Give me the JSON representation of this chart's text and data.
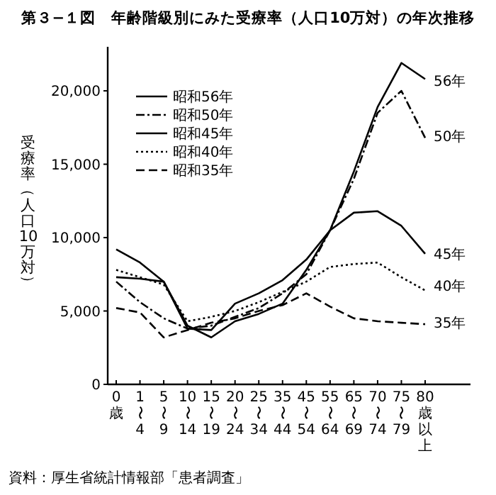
{
  "chart_data": {
    "type": "line",
    "title": "第３−１図　年齢階級別にみた受療率（人口10万対）の年次推移",
    "ylabel": "受療率（人口10万対）",
    "categories": [
      "0歳",
      "1〜4",
      "5〜9",
      "10〜14",
      "15〜19",
      "20〜24",
      "25〜34",
      "35〜44",
      "45〜54",
      "55〜64",
      "65〜69",
      "70〜74",
      "75〜79",
      "80歳以上"
    ],
    "ylim": [
      0,
      23000
    ],
    "yticks": [
      0,
      {
        "value": 5000,
        "label": "5,000"
      },
      {
        "value": 10000,
        "label": "10,000"
      },
      {
        "value": 15000,
        "label": "15,000"
      },
      {
        "value": 20000,
        "label": "20,000"
      }
    ],
    "legend": "top left",
    "grid": false,
    "marker": "none",
    "series": [
      {
        "name": "昭和56年",
        "color": "#000000",
        "line_style": "solid",
        "values": [
          7300,
          7200,
          7000,
          4000,
          3200,
          4300,
          4800,
          5500,
          7800,
          10500,
          14500,
          18900,
          21900,
          20800
        ]
      },
      {
        "name": "昭和50年",
        "color": "#000000",
        "line_style": "dashdot",
        "values": [
          7000,
          5600,
          4500,
          3800,
          4000,
          4600,
          5200,
          6200,
          7500,
          10500,
          14000,
          18500,
          20000,
          16800
        ]
      },
      {
        "name": "昭和45年",
        "color": "#000000",
        "line_style": "solid",
        "values": [
          9200,
          8300,
          7000,
          3800,
          3700,
          5500,
          6200,
          7100,
          8500,
          10500,
          11700,
          11800,
          10800,
          8900
        ]
      },
      {
        "name": "昭和40年",
        "color": "#000000",
        "line_style": "dotted",
        "values": [
          7800,
          7300,
          6800,
          4300,
          4600,
          5000,
          5600,
          6300,
          7000,
          8000,
          8200,
          8300,
          7300,
          6400
        ]
      },
      {
        "name": "昭和35年",
        "color": "#000000",
        "line_style": "dashed",
        "values": [
          5200,
          4900,
          3200,
          3700,
          4200,
          4500,
          5000,
          5400,
          6200,
          5300,
          4500,
          4300,
          4200,
          4100
        ]
      }
    ],
    "annotations": [
      {
        "text": "56年",
        "x": "80歳以上",
        "y": 20700
      },
      {
        "text": "50年",
        "x": "80歳以上",
        "y": 16900
      },
      {
        "text": "45年",
        "x": "80歳以上",
        "y": 8900
      },
      {
        "text": "40年",
        "x": "80歳以上",
        "y": 6700
      },
      {
        "text": "35年",
        "x": "80歳以上",
        "y": 4200
      },
      "資料：厚生省統計情報部「患者調査」"
    ]
  }
}
